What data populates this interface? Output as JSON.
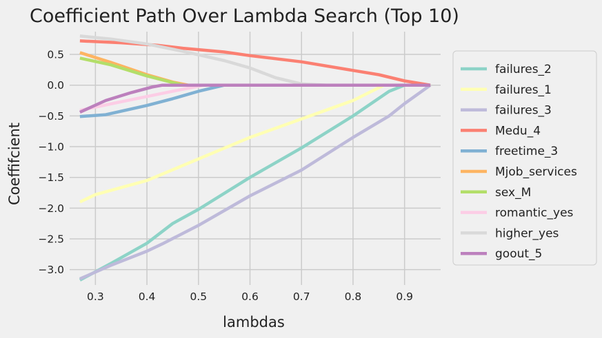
{
  "chart_data": {
    "type": "line",
    "title": "Coefficient Path Over Lambda Search (Top 10)",
    "xlabel": "lambdas",
    "ylabel": "Coeffifcient",
    "xlim": [
      0.25,
      0.97
    ],
    "ylim": [
      -3.25,
      0.87
    ],
    "xticks": [
      0.3,
      0.4,
      0.5,
      0.6,
      0.7,
      0.8,
      0.9
    ],
    "xtick_labels": [
      "0.3",
      "0.4",
      "0.5",
      "0.6",
      "0.7",
      "0.8",
      "0.9"
    ],
    "yticks": [
      0.5,
      0.0,
      -0.5,
      -1.0,
      -1.5,
      -2.0,
      -2.5,
      -3.0
    ],
    "ytick_labels": [
      "0.5",
      "0.0",
      "−0.5",
      "−1.0",
      "−1.5",
      "−2.0",
      "−2.5",
      "−3.0"
    ],
    "grid": true,
    "legend_position": "right",
    "series": [
      {
        "name": "failures_2",
        "color": "#8dd3c7",
        "points": [
          [
            0.27,
            -3.17
          ],
          [
            0.33,
            -2.9
          ],
          [
            0.4,
            -2.57
          ],
          [
            0.45,
            -2.25
          ],
          [
            0.5,
            -2.02
          ],
          [
            0.6,
            -1.5
          ],
          [
            0.7,
            -1.02
          ],
          [
            0.8,
            -0.5
          ],
          [
            0.87,
            -0.1
          ],
          [
            0.9,
            0.0
          ],
          [
            0.95,
            0.0
          ]
        ]
      },
      {
        "name": "failures_1",
        "color": "#ffffb3",
        "points": [
          [
            0.27,
            -1.9
          ],
          [
            0.3,
            -1.78
          ],
          [
            0.4,
            -1.55
          ],
          [
            0.5,
            -1.2
          ],
          [
            0.6,
            -0.85
          ],
          [
            0.7,
            -0.55
          ],
          [
            0.8,
            -0.25
          ],
          [
            0.86,
            0.0
          ],
          [
            0.95,
            0.0
          ]
        ]
      },
      {
        "name": "failures_3",
        "color": "#bebada",
        "points": [
          [
            0.27,
            -3.15
          ],
          [
            0.33,
            -2.93
          ],
          [
            0.4,
            -2.7
          ],
          [
            0.43,
            -2.58
          ],
          [
            0.5,
            -2.28
          ],
          [
            0.6,
            -1.8
          ],
          [
            0.7,
            -1.38
          ],
          [
            0.8,
            -0.85
          ],
          [
            0.87,
            -0.5
          ],
          [
            0.9,
            -0.3
          ],
          [
            0.95,
            0.0
          ]
        ]
      },
      {
        "name": "Medu_4",
        "color": "#fb8072",
        "points": [
          [
            0.27,
            0.72
          ],
          [
            0.35,
            0.69
          ],
          [
            0.42,
            0.65
          ],
          [
            0.47,
            0.6
          ],
          [
            0.55,
            0.54
          ],
          [
            0.6,
            0.48
          ],
          [
            0.7,
            0.38
          ],
          [
            0.8,
            0.24
          ],
          [
            0.85,
            0.17
          ],
          [
            0.9,
            0.07
          ],
          [
            0.95,
            0.0
          ]
        ]
      },
      {
        "name": "freetime_3",
        "color": "#80b1d3",
        "points": [
          [
            0.27,
            -0.51
          ],
          [
            0.32,
            -0.48
          ],
          [
            0.4,
            -0.33
          ],
          [
            0.45,
            -0.22
          ],
          [
            0.5,
            -0.1
          ],
          [
            0.55,
            0.0
          ],
          [
            0.95,
            0.0
          ]
        ]
      },
      {
        "name": "Mjob_services",
        "color": "#fdb462",
        "points": [
          [
            0.27,
            0.53
          ],
          [
            0.33,
            0.37
          ],
          [
            0.4,
            0.17
          ],
          [
            0.45,
            0.05
          ],
          [
            0.48,
            0.0
          ],
          [
            0.95,
            0.0
          ]
        ]
      },
      {
        "name": "sex_M",
        "color": "#b3de69",
        "points": [
          [
            0.27,
            0.44
          ],
          [
            0.33,
            0.33
          ],
          [
            0.4,
            0.15
          ],
          [
            0.47,
            0.0
          ],
          [
            0.95,
            0.0
          ]
        ]
      },
      {
        "name": "romantic_yes",
        "color": "#fccde5",
        "points": [
          [
            0.27,
            -0.41
          ],
          [
            0.35,
            -0.27
          ],
          [
            0.45,
            -0.1
          ],
          [
            0.51,
            0.0
          ],
          [
            0.95,
            0.0
          ]
        ]
      },
      {
        "name": "higher_yes",
        "color": "#d9d9d9",
        "points": [
          [
            0.27,
            0.8
          ],
          [
            0.33,
            0.75
          ],
          [
            0.4,
            0.67
          ],
          [
            0.47,
            0.55
          ],
          [
            0.55,
            0.4
          ],
          [
            0.6,
            0.28
          ],
          [
            0.65,
            0.12
          ],
          [
            0.7,
            0.02
          ],
          [
            0.75,
            0.0
          ],
          [
            0.95,
            0.0
          ]
        ]
      },
      {
        "name": "goout_5",
        "color": "#bc80bd",
        "points": [
          [
            0.27,
            -0.44
          ],
          [
            0.32,
            -0.25
          ],
          [
            0.37,
            -0.12
          ],
          [
            0.41,
            -0.03
          ],
          [
            0.43,
            0.0
          ],
          [
            0.95,
            0.0
          ]
        ]
      }
    ]
  }
}
